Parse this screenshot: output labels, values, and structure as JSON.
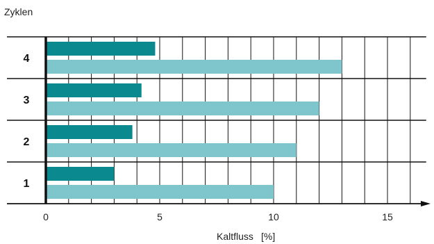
{
  "colors": {
    "dark_series": "#0a8a8f",
    "light_series": "#7fc6cc",
    "grid": "#111111",
    "background": "#ffffff"
  },
  "chart_data": {
    "type": "bar",
    "orientation": "horizontal",
    "ylabel": "Zyklen",
    "xlabel": "Kaltfluss",
    "xunit": "[%]",
    "categories": [
      "1",
      "2",
      "3",
      "4"
    ],
    "series": [
      {
        "values": [
          3.0,
          3.8,
          4.2,
          4.8
        ]
      },
      {
        "values": [
          10.0,
          11.0,
          12.0,
          13.0
        ]
      }
    ],
    "xlim": [
      0,
      16.7
    ],
    "xticks": [
      0,
      5,
      10,
      15
    ],
    "vertical_grid_step": 1,
    "grid": true
  }
}
